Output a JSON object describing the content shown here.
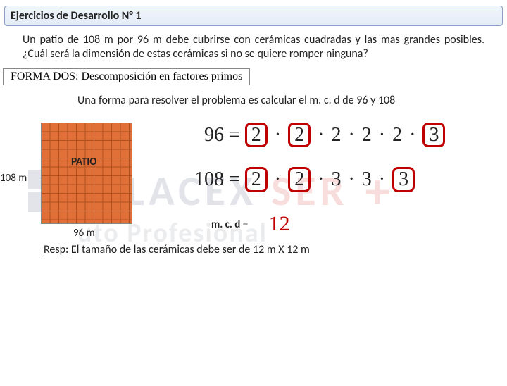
{
  "header": {
    "title": "Ejercicios de Desarrollo  N° 1"
  },
  "problem": {
    "text": "Un patio de 108 m por 96 m debe cubrirse con cerámicas cuadradas y las mas grandes posibles. ¿Cuál será la dimensión de estas cerámicas si no se quiere romper ninguna?"
  },
  "method": {
    "label": "FORMA DOS: Descomposición en factores primos"
  },
  "intro": {
    "text": "Una forma para resolver el problema es calcular el m. c. d de 96  y 108"
  },
  "patio": {
    "label": "PATIO",
    "height_label": "108 m",
    "width_label": "96 m",
    "tile_color": "#e07038",
    "grid_color": "#b05020"
  },
  "eq96": {
    "lhs": "96",
    "eq": " = ",
    "f1": "2",
    "d": " · ",
    "f2": "2",
    "f3": "2",
    "f4": "2",
    "f5": "2",
    "f6": "3"
  },
  "eq108": {
    "lhs": "108 ",
    "eq": " = ",
    "f1": "2",
    "d": " · ",
    "f2": "2",
    "f3": "3",
    "f4": "3",
    "f5": "3"
  },
  "mcd": {
    "label": "m. c. d =",
    "value": "12"
  },
  "answer": {
    "prefix": "Resp:",
    "text": " El tamaño de las cerámicas debe ser de 12 m X 12 m"
  },
  "colors": {
    "box_red": "#c00000",
    "border_blue": "#8aa0c8",
    "gradient_top": "#f2f6fc",
    "gradient_bottom": "#e3ebf7"
  },
  "watermark": {
    "brand1": "IPLACEX",
    "brand2": "SER",
    "plus": "+",
    "sub": "uto Profesional"
  }
}
